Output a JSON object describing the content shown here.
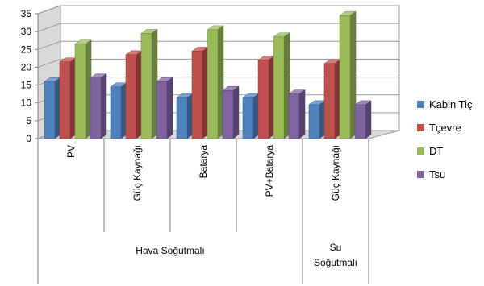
{
  "chart_data": {
    "type": "bar",
    "subtype": "3d-clustered-column",
    "categories": [
      "PV",
      "Güç Kaynağı",
      "Batarya",
      "PV+Batarya",
      "Güç Kaynağı"
    ],
    "category_groups": [
      {
        "label_lines": [
          "Hava Soğutmalı"
        ],
        "span": [
          0,
          3
        ]
      },
      {
        "label_lines": [
          "Su",
          "Soğutmalı"
        ],
        "span": [
          4,
          4
        ]
      }
    ],
    "series": [
      {
        "name": "Kabin Tiç",
        "color": "#4F81BD",
        "values": [
          16,
          14.5,
          11.5,
          11.5,
          9.5
        ]
      },
      {
        "name": "Tçevre",
        "color": "#C0504D",
        "values": [
          21.5,
          23.5,
          24.5,
          22,
          21
        ]
      },
      {
        "name": "DT",
        "color": "#9BBB59",
        "values": [
          26.5,
          29.5,
          30.5,
          28.5,
          34.5
        ]
      },
      {
        "name": "Tsu",
        "color": "#8064A2",
        "values": [
          17,
          16,
          13.5,
          12.5,
          9.5
        ]
      }
    ],
    "y_ticks": [
      "0",
      "5",
      "10",
      "15",
      "20",
      "25",
      "30",
      "35"
    ],
    "ylim": [
      0,
      35
    ],
    "grid": true,
    "legend": "right"
  }
}
